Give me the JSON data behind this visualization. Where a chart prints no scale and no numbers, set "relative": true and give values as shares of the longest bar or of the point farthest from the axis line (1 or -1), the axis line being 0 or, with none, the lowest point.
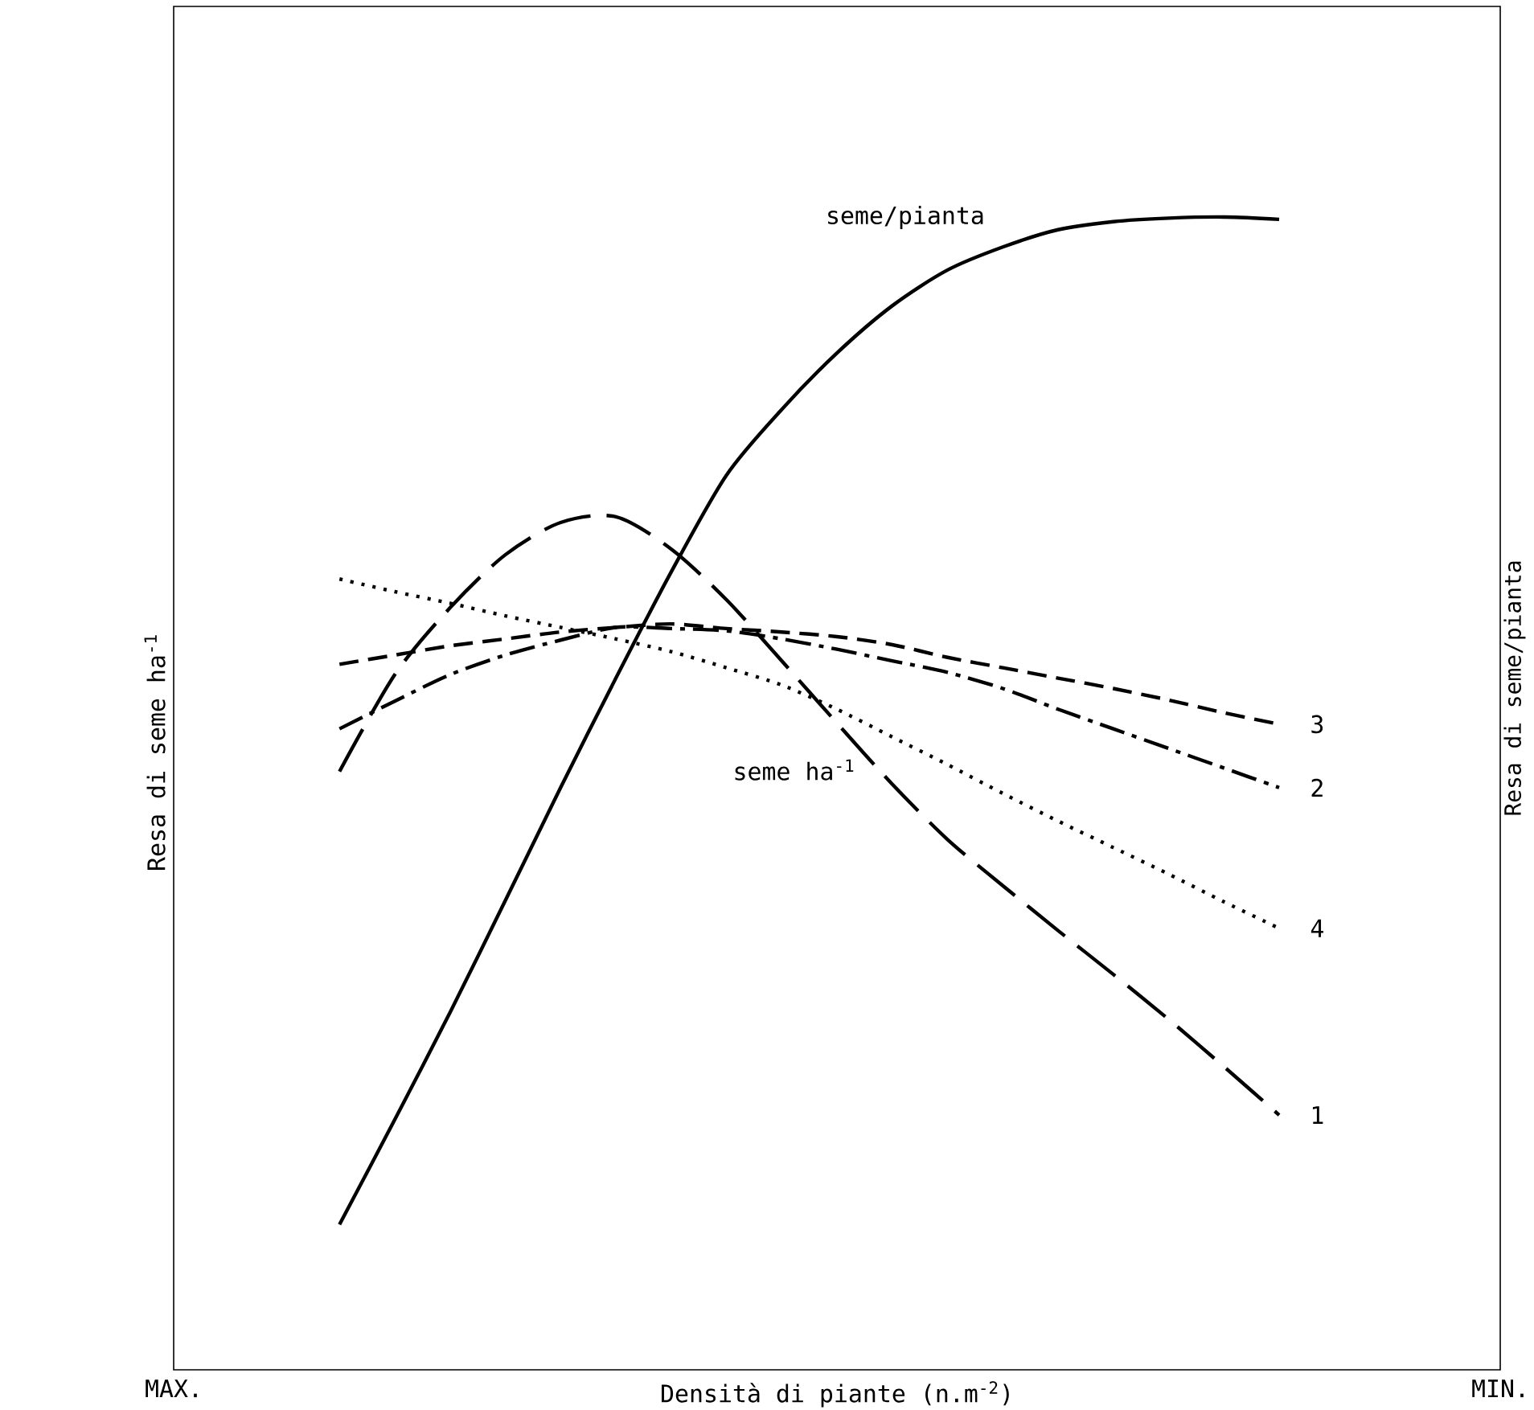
{
  "chart_data": {
    "type": "line",
    "relative": true,
    "xlabel": "Densità di piante (n.m$^{-2}$)",
    "ylabel": "Resa di seme ha$^{-1}$",
    "y2label": "Resa di seme/pianta",
    "categories": [
      "MAX.",
      null,
      null,
      null,
      null,
      null,
      null,
      null,
      null,
      null,
      null,
      null,
      null,
      null,
      null,
      null,
      null,
      null,
      null,
      null,
      null,
      null,
      null,
      null,
      "MIN."
    ],
    "annotations": [
      "seme ha$^{-1}$"
    ],
    "series": [
      {
        "name": "seme/pianta",
        "color": "#000000",
        "line_style": "solid",
        "values": [
          null,
          null,
          null,
          0.126,
          0.217,
          0.31,
          0.407,
          0.505,
          0.6,
          0.692,
          0.776,
          0.833,
          0.882,
          0.923,
          0.954,
          0.974,
          0.989,
          0.996,
          0.999,
          1.0,
          0.998,
          null,
          null,
          null,
          null
        ]
      },
      {
        "name": "1",
        "color": "#000000",
        "line_style": "long dashed",
        "values": [
          null,
          null,
          null,
          0.519,
          0.603,
          0.661,
          0.707,
          0.735,
          0.74,
          0.712,
          0.668,
          0.615,
          0.561,
          0.508,
          0.46,
          0.42,
          0.381,
          0.343,
          0.304,
          0.263,
          0.221,
          null,
          null,
          null,
          null
        ]
      },
      {
        "name": "2",
        "color": "#000000",
        "line_style": "dashdot",
        "values": [
          null,
          null,
          null,
          0.556,
          0.58,
          0.603,
          0.62,
          0.633,
          0.644,
          0.643,
          0.641,
          0.634,
          0.625,
          0.615,
          0.605,
          0.591,
          0.573,
          0.556,
          0.539,
          0.522,
          0.505,
          null,
          null,
          null,
          null
        ]
      },
      {
        "name": "3",
        "color": "#000000",
        "line_style": "dashed",
        "values": [
          null,
          null,
          null,
          0.612,
          0.62,
          0.628,
          0.634,
          0.64,
          0.644,
          0.647,
          0.643,
          0.64,
          0.636,
          0.629,
          0.618,
          0.609,
          0.6,
          0.591,
          0.581,
          0.57,
          0.56,
          null,
          null,
          null,
          null
        ]
      },
      {
        "name": "4",
        "color": "#000000",
        "line_style": "dotted",
        "values": [
          null,
          null,
          null,
          0.686,
          0.675,
          0.665,
          0.654,
          0.644,
          0.634,
          0.623,
          0.609,
          0.594,
          0.573,
          0.549,
          0.525,
          0.5,
          0.476,
          0.453,
          0.43,
          0.406,
          0.383,
          null,
          null,
          null,
          null
        ]
      }
    ]
  }
}
